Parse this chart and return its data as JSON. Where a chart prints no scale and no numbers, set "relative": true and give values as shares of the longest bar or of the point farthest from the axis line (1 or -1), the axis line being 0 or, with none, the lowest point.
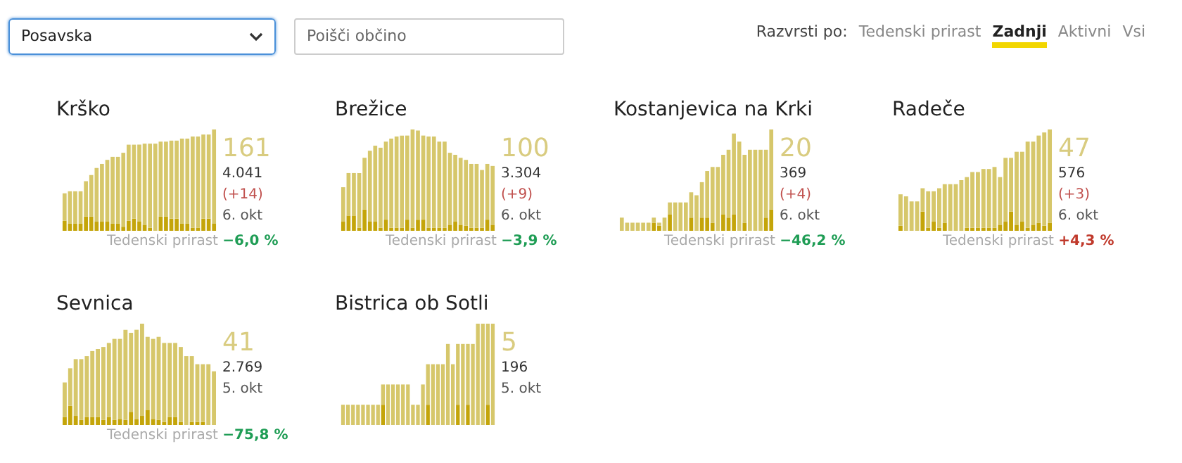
{
  "chart_data": [
    {
      "type": "other",
      "annotations": [
        "Posavska",
        "Poišči občino",
        "Razvrsti po:",
        "Tedenski prirast",
        "Zadnji",
        "Aktivni",
        "Vsi"
      ]
    },
    {
      "type": "bar",
      "title": "Krško",
      "relative": true,
      "stacked": true,
      "annotations": [
        "161",
        "4.041",
        "(+14)",
        "6. okt",
        "Tedenski prirast",
        "−6,0 %"
      ],
      "categories": [
        null,
        null,
        null,
        null,
        null,
        null,
        null,
        null,
        null,
        null,
        null,
        null,
        null,
        null,
        null,
        null,
        null,
        null,
        null,
        null,
        null,
        null,
        null,
        null,
        null,
        null,
        null,
        null,
        null
      ],
      "series": [
        {
          "color": "#c4a50a",
          "values": [
            0.1,
            0.07,
            0.07,
            0.07,
            0.14,
            0.14,
            0.09,
            0.09,
            0.09,
            0.07,
            0.07,
            0.04,
            0.1,
            0.12,
            0.09,
            0.06,
            0.03,
            0,
            0.14,
            0.14,
            0.12,
            0.12,
            0.07,
            0.07,
            0.03,
            0.03,
            0.12,
            0.12,
            0.07
          ]
        },
        {
          "color": "#d6c76b",
          "values": [
            0.27,
            0.32,
            0.32,
            0.32,
            0.35,
            0.41,
            0.53,
            0.57,
            0.61,
            0.66,
            0.66,
            0.73,
            0.75,
            0.73,
            0.76,
            0.8,
            0.83,
            0.86,
            0.74,
            0.74,
            0.77,
            0.77,
            0.84,
            0.84,
            0.9,
            0.9,
            0.83,
            0.83,
            0.93
          ]
        }
      ]
    },
    {
      "type": "bar",
      "title": "Brežice",
      "relative": true,
      "stacked": true,
      "annotations": [
        "100",
        "3.304",
        "(+9)",
        "6. okt",
        "Tedenski prirast",
        "−3,9 %"
      ],
      "categories": [
        null,
        null,
        null,
        null,
        null,
        null,
        null,
        null,
        null,
        null,
        null,
        null,
        null,
        null,
        null,
        null,
        null,
        null,
        null,
        null,
        null,
        null,
        null,
        null,
        null,
        null,
        null,
        null,
        null
      ],
      "series": [
        {
          "color": "#c4a50a",
          "values": [
            0.09,
            0.15,
            0.15,
            0.03,
            0.21,
            0.09,
            0.09,
            0.03,
            0.11,
            0.03,
            0.03,
            0.03,
            0.11,
            0.03,
            0.11,
            0.11,
            0.03,
            0.03,
            0.03,
            0.03,
            0.06,
            0.09,
            0.06,
            0.05,
            0.03,
            0.03,
            0.03,
            0.11,
            0.06
          ]
        },
        {
          "color": "#d6c76b",
          "values": [
            0.34,
            0.42,
            0.42,
            0.54,
            0.51,
            0.7,
            0.75,
            0.79,
            0.77,
            0.88,
            0.9,
            0.91,
            0.83,
            0.97,
            0.88,
            0.83,
            0.9,
            0.9,
            0.85,
            0.85,
            0.71,
            0.66,
            0.66,
            0.65,
            0.63,
            0.63,
            0.57,
            0.55,
            0.58
          ]
        }
      ]
    },
    {
      "type": "bar",
      "title": "Kostanjevica na Krki",
      "relative": true,
      "stacked": true,
      "annotations": [
        "20",
        "369",
        "(+4)",
        "6. okt",
        "Tedenski prirast",
        "−46,2 %"
      ],
      "categories": [
        null,
        null,
        null,
        null,
        null,
        null,
        null,
        null,
        null,
        null,
        null,
        null,
        null,
        null,
        null,
        null,
        null,
        null,
        null,
        null,
        null,
        null,
        null,
        null,
        null,
        null,
        null,
        null,
        null
      ],
      "series": [
        {
          "color": "#c4a50a",
          "values": [
            0,
            0,
            0,
            0,
            0,
            0,
            0.08,
            0.05,
            0,
            0.16,
            0,
            0,
            0,
            0.13,
            0,
            0.13,
            0.13,
            0.08,
            0,
            0.16,
            0.13,
            0.16,
            0,
            0.08,
            0,
            0,
            0,
            0.13,
            0.21
          ]
        },
        {
          "color": "#d6c76b",
          "values": [
            0.13,
            0.08,
            0.08,
            0.08,
            0.08,
            0.08,
            0.05,
            0.03,
            0.13,
            0.12,
            0.28,
            0.28,
            0.28,
            0.25,
            0.35,
            0.35,
            0.46,
            0.55,
            0.63,
            0.59,
            0.67,
            0.8,
            0.88,
            0.67,
            0.8,
            0.8,
            0.8,
            0.67,
            0.79
          ]
        }
      ]
    },
    {
      "type": "bar",
      "title": "Radeče",
      "relative": true,
      "stacked": true,
      "annotations": [
        "47",
        "576",
        "(+3)",
        "6. okt",
        "Tedenski prirast",
        "+4,3 %"
      ],
      "categories": [
        null,
        null,
        null,
        null,
        null,
        null,
        null,
        null,
        null,
        null,
        null,
        null,
        null,
        null,
        null,
        null,
        null,
        null,
        null,
        null,
        null,
        null,
        null,
        null,
        null,
        null,
        null,
        null
      ],
      "series": [
        {
          "color": "#c4a50a",
          "values": [
            0.05,
            0,
            0,
            0,
            0.19,
            0.03,
            0.09,
            0.03,
            0.08,
            0,
            0,
            0,
            0.03,
            0.03,
            0.03,
            0.03,
            0.03,
            0.03,
            0.06,
            0.09,
            0.19,
            0.06,
            0.09,
            0.03,
            0.06,
            0.08,
            0.05,
            0.08
          ]
        },
        {
          "color": "#d6c76b",
          "values": [
            0.31,
            0.34,
            0.29,
            0.29,
            0.23,
            0.36,
            0.3,
            0.39,
            0.38,
            0.46,
            0.46,
            0.5,
            0.5,
            0.55,
            0.55,
            0.58,
            0.58,
            0.6,
            0.47,
            0.63,
            0.53,
            0.72,
            0.69,
            0.85,
            0.82,
            0.86,
            0.92,
            0.92
          ]
        }
      ]
    },
    {
      "type": "bar",
      "title": "Sevnica",
      "relative": true,
      "stacked": true,
      "annotations": [
        "41",
        "2.769",
        "5. okt",
        "Tedenski prirast",
        "−75,8 %"
      ],
      "categories": [
        null,
        null,
        null,
        null,
        null,
        null,
        null,
        null,
        null,
        null,
        null,
        null,
        null,
        null,
        null,
        null,
        null,
        null,
        null,
        null,
        null,
        null,
        null,
        null,
        null,
        null,
        null,
        null
      ],
      "series": [
        {
          "color": "#c4a50a",
          "values": [
            0.08,
            0.19,
            0.09,
            0.05,
            0.08,
            0.08,
            0.08,
            0.05,
            0.08,
            0.05,
            0.06,
            0.05,
            0.13,
            0.06,
            0.09,
            0.15,
            0.06,
            0.05,
            0.03,
            0.08,
            0.08,
            0.03,
            0,
            0.03,
            0.03,
            0.03,
            0,
            0
          ]
        },
        {
          "color": "#d6c76b",
          "values": [
            0.34,
            0.37,
            0.56,
            0.6,
            0.6,
            0.65,
            0.67,
            0.72,
            0.73,
            0.8,
            0.79,
            0.89,
            0.78,
            0.88,
            0.91,
            0.72,
            0.79,
            0.82,
            0.78,
            0.73,
            0.73,
            0.74,
            0.68,
            0.65,
            0.57,
            0.57,
            0.6,
            0.53
          ]
        }
      ]
    },
    {
      "type": "bar",
      "title": "Bistrica ob Sotli",
      "relative": true,
      "stacked": true,
      "annotations": [
        "5",
        "196",
        "5. okt"
      ],
      "categories": [
        null,
        null,
        null,
        null,
        null,
        null,
        null,
        null,
        null,
        null,
        null,
        null,
        null,
        null,
        null,
        null,
        null,
        null,
        null,
        null,
        null,
        null,
        null,
        null,
        null,
        null,
        null,
        null,
        null,
        null,
        null
      ],
      "series": [
        {
          "color": "#c4a50a",
          "values": [
            0,
            0,
            0,
            0,
            0,
            0,
            0,
            0,
            0.2,
            0,
            0,
            0,
            0,
            0,
            0,
            0,
            0,
            0.2,
            0,
            0,
            0,
            0,
            0,
            0.2,
            0,
            0.2,
            0,
            0,
            0,
            0.2,
            0
          ]
        },
        {
          "color": "#d6c76b",
          "values": [
            0.2,
            0.2,
            0.2,
            0.2,
            0.2,
            0.2,
            0.2,
            0.2,
            0.2,
            0.4,
            0.4,
            0.4,
            0.4,
            0.4,
            0.2,
            0.2,
            0.4,
            0.4,
            0.6,
            0.6,
            0.6,
            0.8,
            0.6,
            0.6,
            0.8,
            0.6,
            0.8,
            1,
            1,
            0.8,
            1
          ]
        }
      ]
    }
  ]
}
